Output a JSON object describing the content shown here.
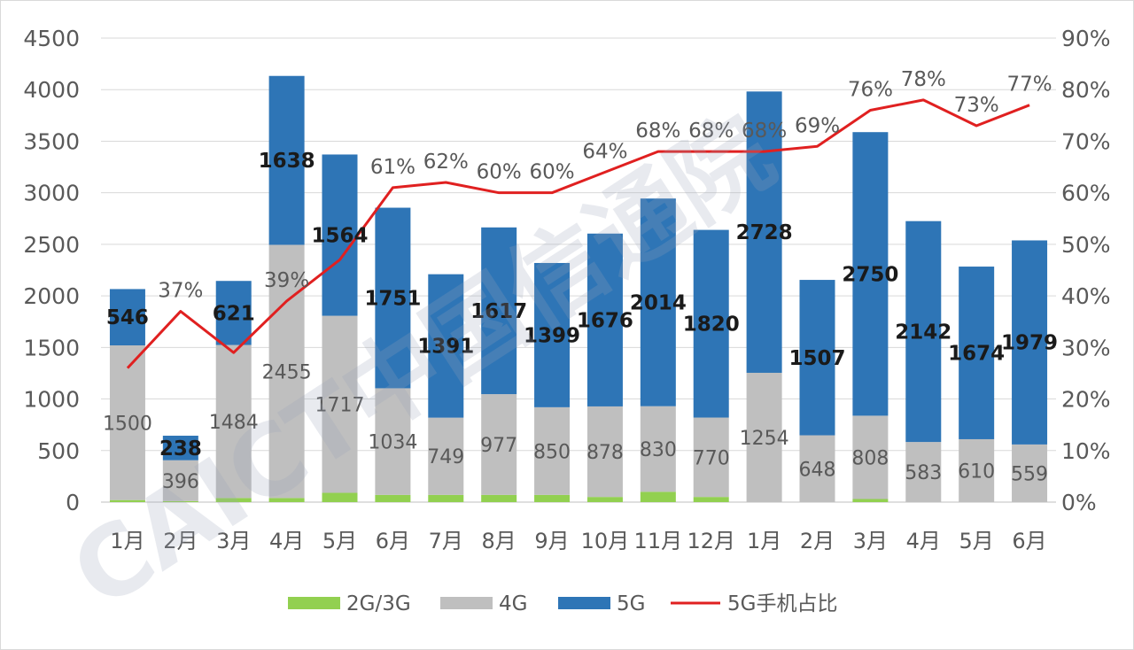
{
  "chart_data": {
    "type": "bar",
    "stacked": true,
    "categories": [
      "1月",
      "2月",
      "3月",
      "4月",
      "5月",
      "6月",
      "7月",
      "8月",
      "9月",
      "10月",
      "11月",
      "12月",
      "1月",
      "2月",
      "3月",
      "4月",
      "5月",
      "6月"
    ],
    "series": [
      {
        "name": "2G/3G",
        "color": "#92d050",
        "values": [
          20,
          10,
          40,
          40,
          90,
          70,
          70,
          70,
          70,
          50,
          100,
          50,
          0,
          0,
          30,
          0,
          0,
          0
        ]
      },
      {
        "name": "4G",
        "color": "#bfbfbf",
        "values": [
          1500,
          396,
          1484,
          2455,
          1717,
          1034,
          749,
          977,
          850,
          878,
          830,
          770,
          1254,
          648,
          808,
          583,
          610,
          559
        ]
      },
      {
        "name": "5G",
        "color": "#2e75b6",
        "values": [
          546,
          238,
          621,
          1638,
          1564,
          1751,
          1391,
          1617,
          1399,
          1676,
          2014,
          1820,
          2728,
          1507,
          2750,
          2142,
          1674,
          1979
        ]
      }
    ],
    "line": {
      "name": "5G手机占比",
      "color": "#e02020",
      "axis": "right",
      "values": [
        26,
        37,
        29,
        39,
        47,
        61,
        62,
        60,
        60,
        64,
        68,
        68,
        68,
        69,
        76,
        78,
        73,
        77
      ],
      "labels": [
        "",
        "37%",
        "",
        "39%",
        "",
        "61%",
        "62%",
        "60%",
        "60%",
        "64%",
        "68%",
        "68%",
        "68%",
        "69%",
        "76%",
        "78%",
        "73%",
        "77%"
      ]
    },
    "y_left": {
      "min": 0,
      "max": 4500,
      "ticks": [
        "0",
        "500",
        "1000",
        "1500",
        "2000",
        "2500",
        "3000",
        "3500",
        "4000",
        "4500"
      ]
    },
    "y_right": {
      "min": 0,
      "max": 90,
      "ticks": [
        "0%",
        "10%",
        "20%",
        "30%",
        "40%",
        "50%",
        "60%",
        "70%",
        "80%",
        "90%"
      ]
    },
    "grid": true,
    "legend_position": "bottom"
  },
  "watermark": "CAICT中国信通院"
}
